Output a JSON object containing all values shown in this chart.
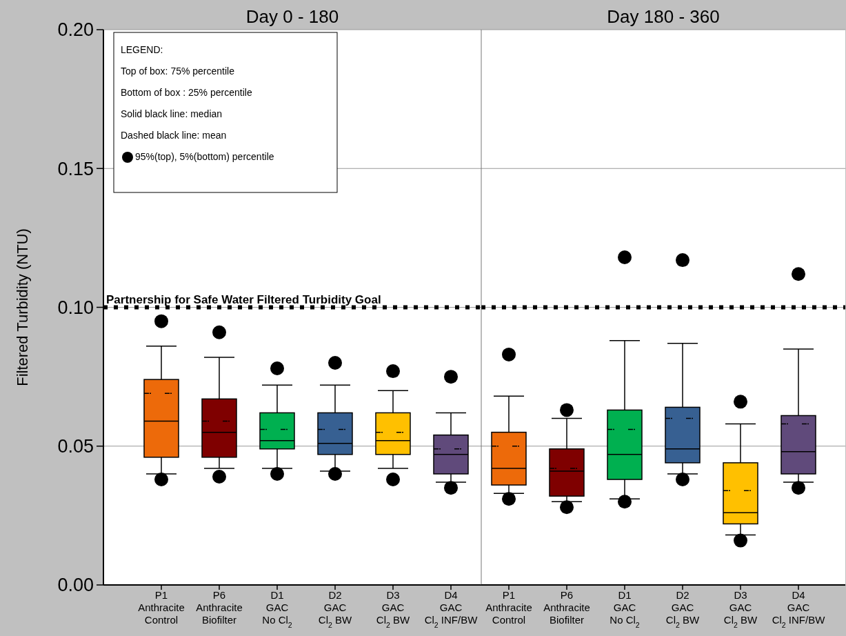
{
  "chart_data": [
    {
      "type": "box",
      "title": "Day 0 - 180",
      "ylabel": "Filtered Turbidity (NTU)",
      "ylim": [
        0,
        0.2
      ],
      "yticks": [
        {
          "value": 0,
          "label": "0.00"
        },
        0.05,
        {
          "value": 0.1,
          "label": "0.10"
        },
        0.15,
        {
          "value": 0.2,
          "label": "0.20"
        }
      ],
      "grid": "y",
      "categories": [
        "P1\nAnthracite\nControl",
        "P6\nAnthracite\nBiofilter",
        "D1\nGAC\nNo Cl$_{2}$",
        "D2\nGAC\nCl$_{2}$ BW",
        "D3\nGAC\nCl$_{2}$ BW",
        "D4\nGAC\nCl$_{2}$ INF/BW"
      ],
      "colors": [
        "#ed6a0a",
        "#7f0000",
        "#00b050",
        "#376092",
        "#ffc000",
        "#604a7b"
      ],
      "boxes": [
        {
          "low": 0.04,
          "q1": 0.046,
          "median": 0.059,
          "q3": 0.074,
          "high": 0.086,
          "mean": 0.069,
          "outliers": [
            0.095,
            0.038
          ]
        },
        {
          "low": 0.042,
          "q1": 0.046,
          "median": 0.055,
          "q3": 0.067,
          "high": 0.082,
          "mean": 0.059,
          "outliers": [
            0.091,
            0.039
          ]
        },
        {
          "low": 0.042,
          "q1": 0.049,
          "median": 0.052,
          "q3": 0.062,
          "high": 0.072,
          "mean": 0.056,
          "outliers": [
            0.078,
            0.04
          ]
        },
        {
          "low": 0.041,
          "q1": 0.047,
          "median": 0.051,
          "q3": 0.062,
          "high": 0.072,
          "mean": 0.056,
          "outliers": [
            0.08,
            0.04
          ]
        },
        {
          "low": 0.042,
          "q1": 0.047,
          "median": 0.052,
          "q3": 0.062,
          "high": 0.07,
          "mean": 0.055,
          "outliers": [
            0.077,
            0.038
          ]
        },
        {
          "low": 0.037,
          "q1": 0.04,
          "median": 0.047,
          "q3": 0.054,
          "high": 0.062,
          "mean": 0.049,
          "outliers": [
            0.075,
            0.035
          ]
        }
      ],
      "ref_lines": [
        {
          "axis": "y",
          "value": 0.1,
          "label": "Partnership for Safe Water Filtered Turbidity Goal",
          "color": "#000000",
          "line_style": "dotted"
        }
      ],
      "annotations": [
        "LEGEND:",
        "Top of box:  75% percentile",
        "Bottom of box :  25% percentile",
        "Solid black line:   median",
        "Dashed black line:  mean",
        "95%(top), 5%(bottom) percentile"
      ]
    },
    {
      "type": "box",
      "title": "Day 180 - 360",
      "ylim": [
        0,
        0.2
      ],
      "yticks": [
        0,
        0.05,
        0.1,
        0.15,
        0.2
      ],
      "grid": "y",
      "tick_labels": "x",
      "categories": [
        "P1\nAnthracite\nControl",
        "P6\nAnthracite\nBiofilter",
        "D1\nGAC\nNo Cl$_{2}$",
        "D2\nGAC\nCl$_{2}$ BW",
        "D3\nGAC\nCl$_{2}$ BW",
        "D4\nGAC\nCl$_{2}$ INF/BW"
      ],
      "colors": [
        "#ed6a0a",
        "#7f0000",
        "#00b050",
        "#376092",
        "#ffc000",
        "#604a7b"
      ],
      "boxes": [
        {
          "low": 0.033,
          "q1": 0.036,
          "median": 0.042,
          "q3": 0.055,
          "high": 0.068,
          "mean": 0.05,
          "outliers": [
            0.083,
            0.031
          ]
        },
        {
          "low": 0.03,
          "q1": 0.032,
          "median": 0.041,
          "q3": 0.049,
          "high": 0.06,
          "mean": 0.042,
          "outliers": [
            0.063,
            0.028
          ]
        },
        {
          "low": 0.031,
          "q1": 0.038,
          "median": 0.047,
          "q3": 0.063,
          "high": 0.088,
          "mean": 0.056,
          "outliers": [
            0.118,
            0.03
          ]
        },
        {
          "low": 0.04,
          "q1": 0.044,
          "median": 0.049,
          "q3": 0.064,
          "high": 0.087,
          "mean": 0.06,
          "outliers": [
            0.117,
            0.038
          ]
        },
        {
          "low": 0.018,
          "q1": 0.022,
          "median": 0.026,
          "q3": 0.044,
          "high": 0.058,
          "mean": 0.034,
          "outliers": [
            0.066,
            0.016
          ]
        },
        {
          "low": 0.037,
          "q1": 0.04,
          "median": 0.048,
          "q3": 0.061,
          "high": 0.085,
          "mean": 0.058,
          "outliers": [
            0.112,
            0.035
          ]
        }
      ],
      "ref_lines": [
        {
          "axis": "y",
          "value": 0.1,
          "color": "#000000",
          "line_style": "dotted"
        }
      ]
    }
  ]
}
